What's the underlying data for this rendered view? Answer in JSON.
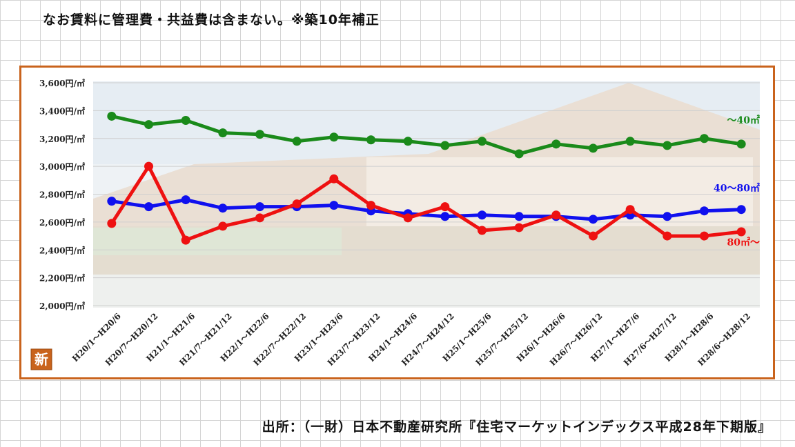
{
  "header": {
    "note": "なお賃料に管理費・共益費は含まない。※築10年補正"
  },
  "footer": {
    "source": "出所：（一財）日本不動産研究所『住宅マーケットインデックス平成28年下期版』"
  },
  "badge": {
    "label": "新"
  },
  "colors": {
    "frame": "#c9631c",
    "green": "#1a8a1a",
    "blue": "#1010ee",
    "red": "#ee1111"
  },
  "chart_data": {
    "type": "line",
    "categories": [
      "H20/1～H20/6",
      "H20/7～H20/12",
      "H21/1～H21/6",
      "H21/7～H21/12",
      "H22/1～H22/6",
      "H22/7～H22/12",
      "H23/1～H23/6",
      "H23/7～H23/12",
      "H24/1～H24/6",
      "H24/7～H24/12",
      "H25/1～H25/6",
      "H25/7～H25/12",
      "H26/1～H26/6",
      "H26/7～H26/12",
      "H27/1～H27/6",
      "H27/6～H27/12",
      "H28/1～H28/6",
      "H28/6～H28/12"
    ],
    "yticks": [
      2000,
      2200,
      2400,
      2600,
      2800,
      3000,
      3200,
      3400,
      3600
    ],
    "ytick_labels": [
      "2,000円/㎡",
      "2,200円/㎡",
      "2,400円/㎡",
      "2,600円/㎡",
      "2,800円/㎡",
      "3,000円/㎡",
      "3,200円/㎡",
      "3,400円/㎡",
      "3,600円/㎡"
    ],
    "ylim": [
      2000,
      3600
    ],
    "series": [
      {
        "name": "～40㎡",
        "color": "#1a8a1a",
        "values": [
          3360,
          3300,
          3330,
          3240,
          3230,
          3180,
          3210,
          3190,
          3180,
          3150,
          3180,
          3090,
          3160,
          3130,
          3180,
          3150,
          3200,
          3160
        ]
      },
      {
        "name": "40～80㎡",
        "color": "#1010ee",
        "values": [
          2750,
          2710,
          2760,
          2700,
          2710,
          2710,
          2720,
          2680,
          2660,
          2640,
          2650,
          2640,
          2640,
          2620,
          2650,
          2640,
          2680,
          2690
        ]
      },
      {
        "name": "80㎡～",
        "color": "#ee1111",
        "values": [
          2590,
          3000,
          2470,
          2570,
          2630,
          2730,
          2910,
          2720,
          2630,
          2710,
          2540,
          2560,
          2650,
          2500,
          2690,
          2500,
          2500,
          2530
        ]
      }
    ]
  }
}
